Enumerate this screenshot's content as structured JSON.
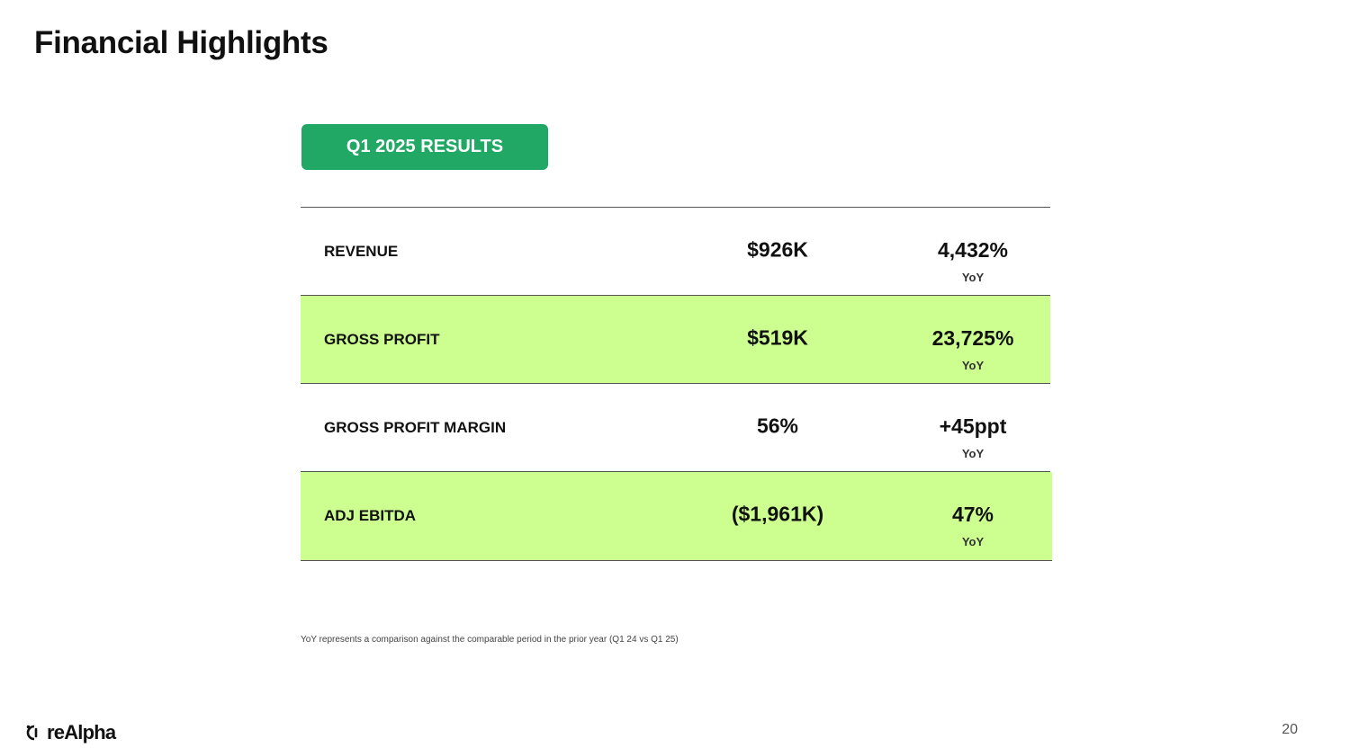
{
  "slide": {
    "title": "Financial Highlights",
    "results_label": "Q1 2025 RESULTS",
    "page_number": "20",
    "footnote": "YoY represents a comparison against the comparable period in the prior year (Q1 24 vs Q1 25)"
  },
  "metrics": [
    {
      "label": "REVENUE",
      "value": "$926K",
      "change": "4,432%",
      "change_label": "YoY",
      "highlighted": false
    },
    {
      "label": "GROSS PROFIT",
      "value": "$519K",
      "change": "23,725%",
      "change_label": "YoY",
      "highlighted": true
    },
    {
      "label": "GROSS PROFIT MARGIN",
      "value": "56%",
      "change": "+45ppt",
      "change_label": "YoY",
      "highlighted": false
    },
    {
      "label": "ADJ EBITDA",
      "value": "($1,961K)",
      "change": "47%",
      "change_label": "YoY",
      "highlighted": true
    }
  ],
  "brand": {
    "logo_text": "reAlpha",
    "logo_icon": "realpha-logo-icon",
    "accent_color": "#21a865",
    "highlight_color": "#ccff8f"
  }
}
